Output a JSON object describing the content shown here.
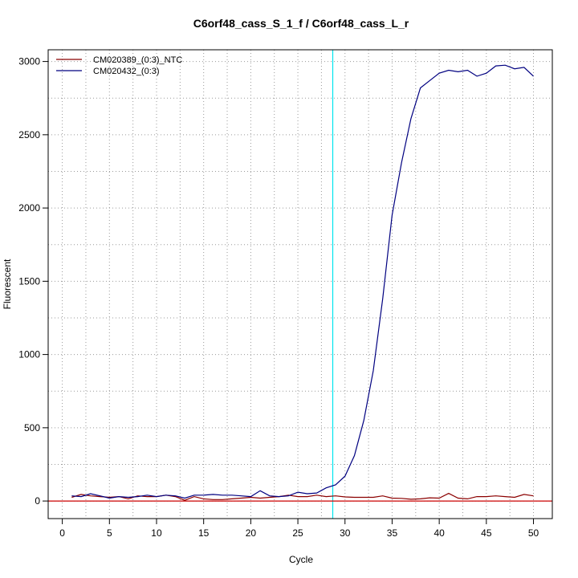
{
  "chart_data": {
    "type": "line",
    "title": "C6orf48_cass_S_1_f / C6orf48_cass_L_r",
    "xlabel": "Cycle",
    "ylabel": "Fluorescent",
    "xlim": [
      -1.5,
      52
    ],
    "ylim": [
      -120,
      3080
    ],
    "xticks": [
      0,
      5,
      10,
      15,
      20,
      25,
      30,
      35,
      40,
      45,
      50
    ],
    "xtick_labels": [
      "0",
      "5",
      "10",
      "15",
      "20",
      "25",
      "30",
      "35",
      "40",
      "45",
      "50"
    ],
    "yticks": [
      0,
      500,
      1000,
      1500,
      2000,
      2500,
      3000
    ],
    "ytick_labels": [
      "0",
      "500",
      "1000",
      "1500",
      "2000",
      "2500",
      "3000"
    ],
    "grid_x_minor": [
      2.5,
      7.5,
      12.5,
      17.5,
      22.5,
      27.5,
      32.5,
      37.5,
      42.5,
      47.5
    ],
    "grid_y_minor": [
      250,
      750,
      1250,
      1750,
      2250,
      2750
    ],
    "grid": true,
    "legend_position": "top-left",
    "threshold_cycle": 28.7,
    "threshold_color": "#00e5ee",
    "baseline_value": 0,
    "baseline_color": "#cc0000",
    "x": [
      1,
      2,
      3,
      4,
      5,
      6,
      7,
      8,
      9,
      10,
      11,
      12,
      13,
      14,
      15,
      16,
      17,
      18,
      19,
      20,
      21,
      22,
      23,
      24,
      25,
      26,
      27,
      28,
      29,
      30,
      31,
      32,
      33,
      34,
      35,
      36,
      37,
      38,
      39,
      40,
      41,
      42,
      43,
      44,
      45,
      46,
      47,
      48,
      49,
      50
    ],
    "series": [
      {
        "name": "CM020389_(0:3)_NTC",
        "color": "#8b0000",
        "values": [
          25,
          45,
          35,
          30,
          25,
          30,
          15,
          35,
          30,
          30,
          40,
          30,
          5,
          30,
          15,
          10,
          10,
          15,
          20,
          25,
          20,
          25,
          30,
          40,
          30,
          30,
          40,
          30,
          35,
          28,
          25,
          25,
          25,
          35,
          20,
          18,
          12,
          15,
          22,
          20,
          52,
          20,
          15,
          30,
          30,
          35,
          30,
          25,
          45,
          35
        ]
      },
      {
        "name": "CM020432_(0:3)",
        "color": "#000080",
        "values": [
          35,
          30,
          50,
          35,
          20,
          30,
          25,
          30,
          40,
          30,
          40,
          35,
          20,
          40,
          40,
          45,
          40,
          40,
          35,
          30,
          70,
          35,
          30,
          35,
          60,
          50,
          55,
          90,
          110,
          170,
          310,
          550,
          890,
          1380,
          1950,
          2310,
          2610,
          2820,
          2870,
          2920,
          2940,
          2930,
          2940,
          2900,
          2920,
          2970,
          2975,
          2950,
          2960,
          2900
        ]
      }
    ]
  }
}
